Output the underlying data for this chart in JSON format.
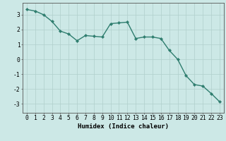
{
  "title": "",
  "xlabel": "Humidex (Indice chaleur)",
  "ylabel": "",
  "x": [
    0,
    1,
    2,
    3,
    4,
    5,
    6,
    7,
    8,
    9,
    10,
    11,
    12,
    13,
    14,
    15,
    16,
    17,
    18,
    19,
    20,
    21,
    22,
    23
  ],
  "y": [
    3.35,
    3.25,
    3.0,
    2.55,
    1.9,
    1.7,
    1.25,
    1.6,
    1.55,
    1.5,
    2.4,
    2.45,
    2.5,
    1.4,
    1.5,
    1.5,
    1.4,
    0.6,
    0.0,
    -1.1,
    -1.7,
    -1.8,
    -2.3,
    -2.85
  ],
  "line_color": "#2e7d6e",
  "marker": "D",
  "marker_size": 2.2,
  "line_width": 1.0,
  "bg_color": "#cce8e6",
  "grid_color": "#b0cfcc",
  "yticks": [
    -3,
    -2,
    -1,
    0,
    1,
    2,
    3
  ],
  "ylim": [
    -3.6,
    3.8
  ],
  "xlim": [
    -0.5,
    23.5
  ],
  "axis_fontsize": 6.5,
  "tick_fontsize": 5.8
}
